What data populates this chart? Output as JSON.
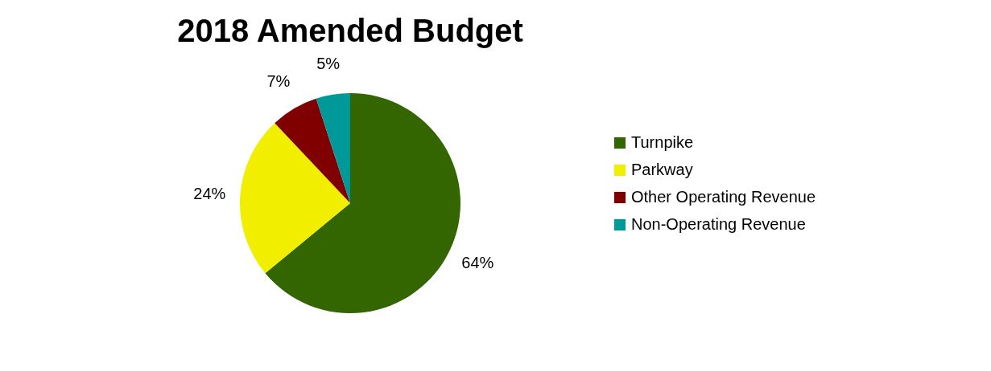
{
  "chart_data": {
    "type": "pie",
    "title": "2018 Amended Budget",
    "categories": [
      "Turnpike",
      "Parkway",
      "Other Operating Revenue",
      "Non-Operating Revenue"
    ],
    "values": [
      64,
      24,
      7,
      5
    ],
    "colors": [
      "#336600",
      "#f2ee00",
      "#800000",
      "#009999"
    ],
    "value_labels": [
      "64%",
      "24%",
      "7%",
      "5%"
    ],
    "legend": "right"
  }
}
